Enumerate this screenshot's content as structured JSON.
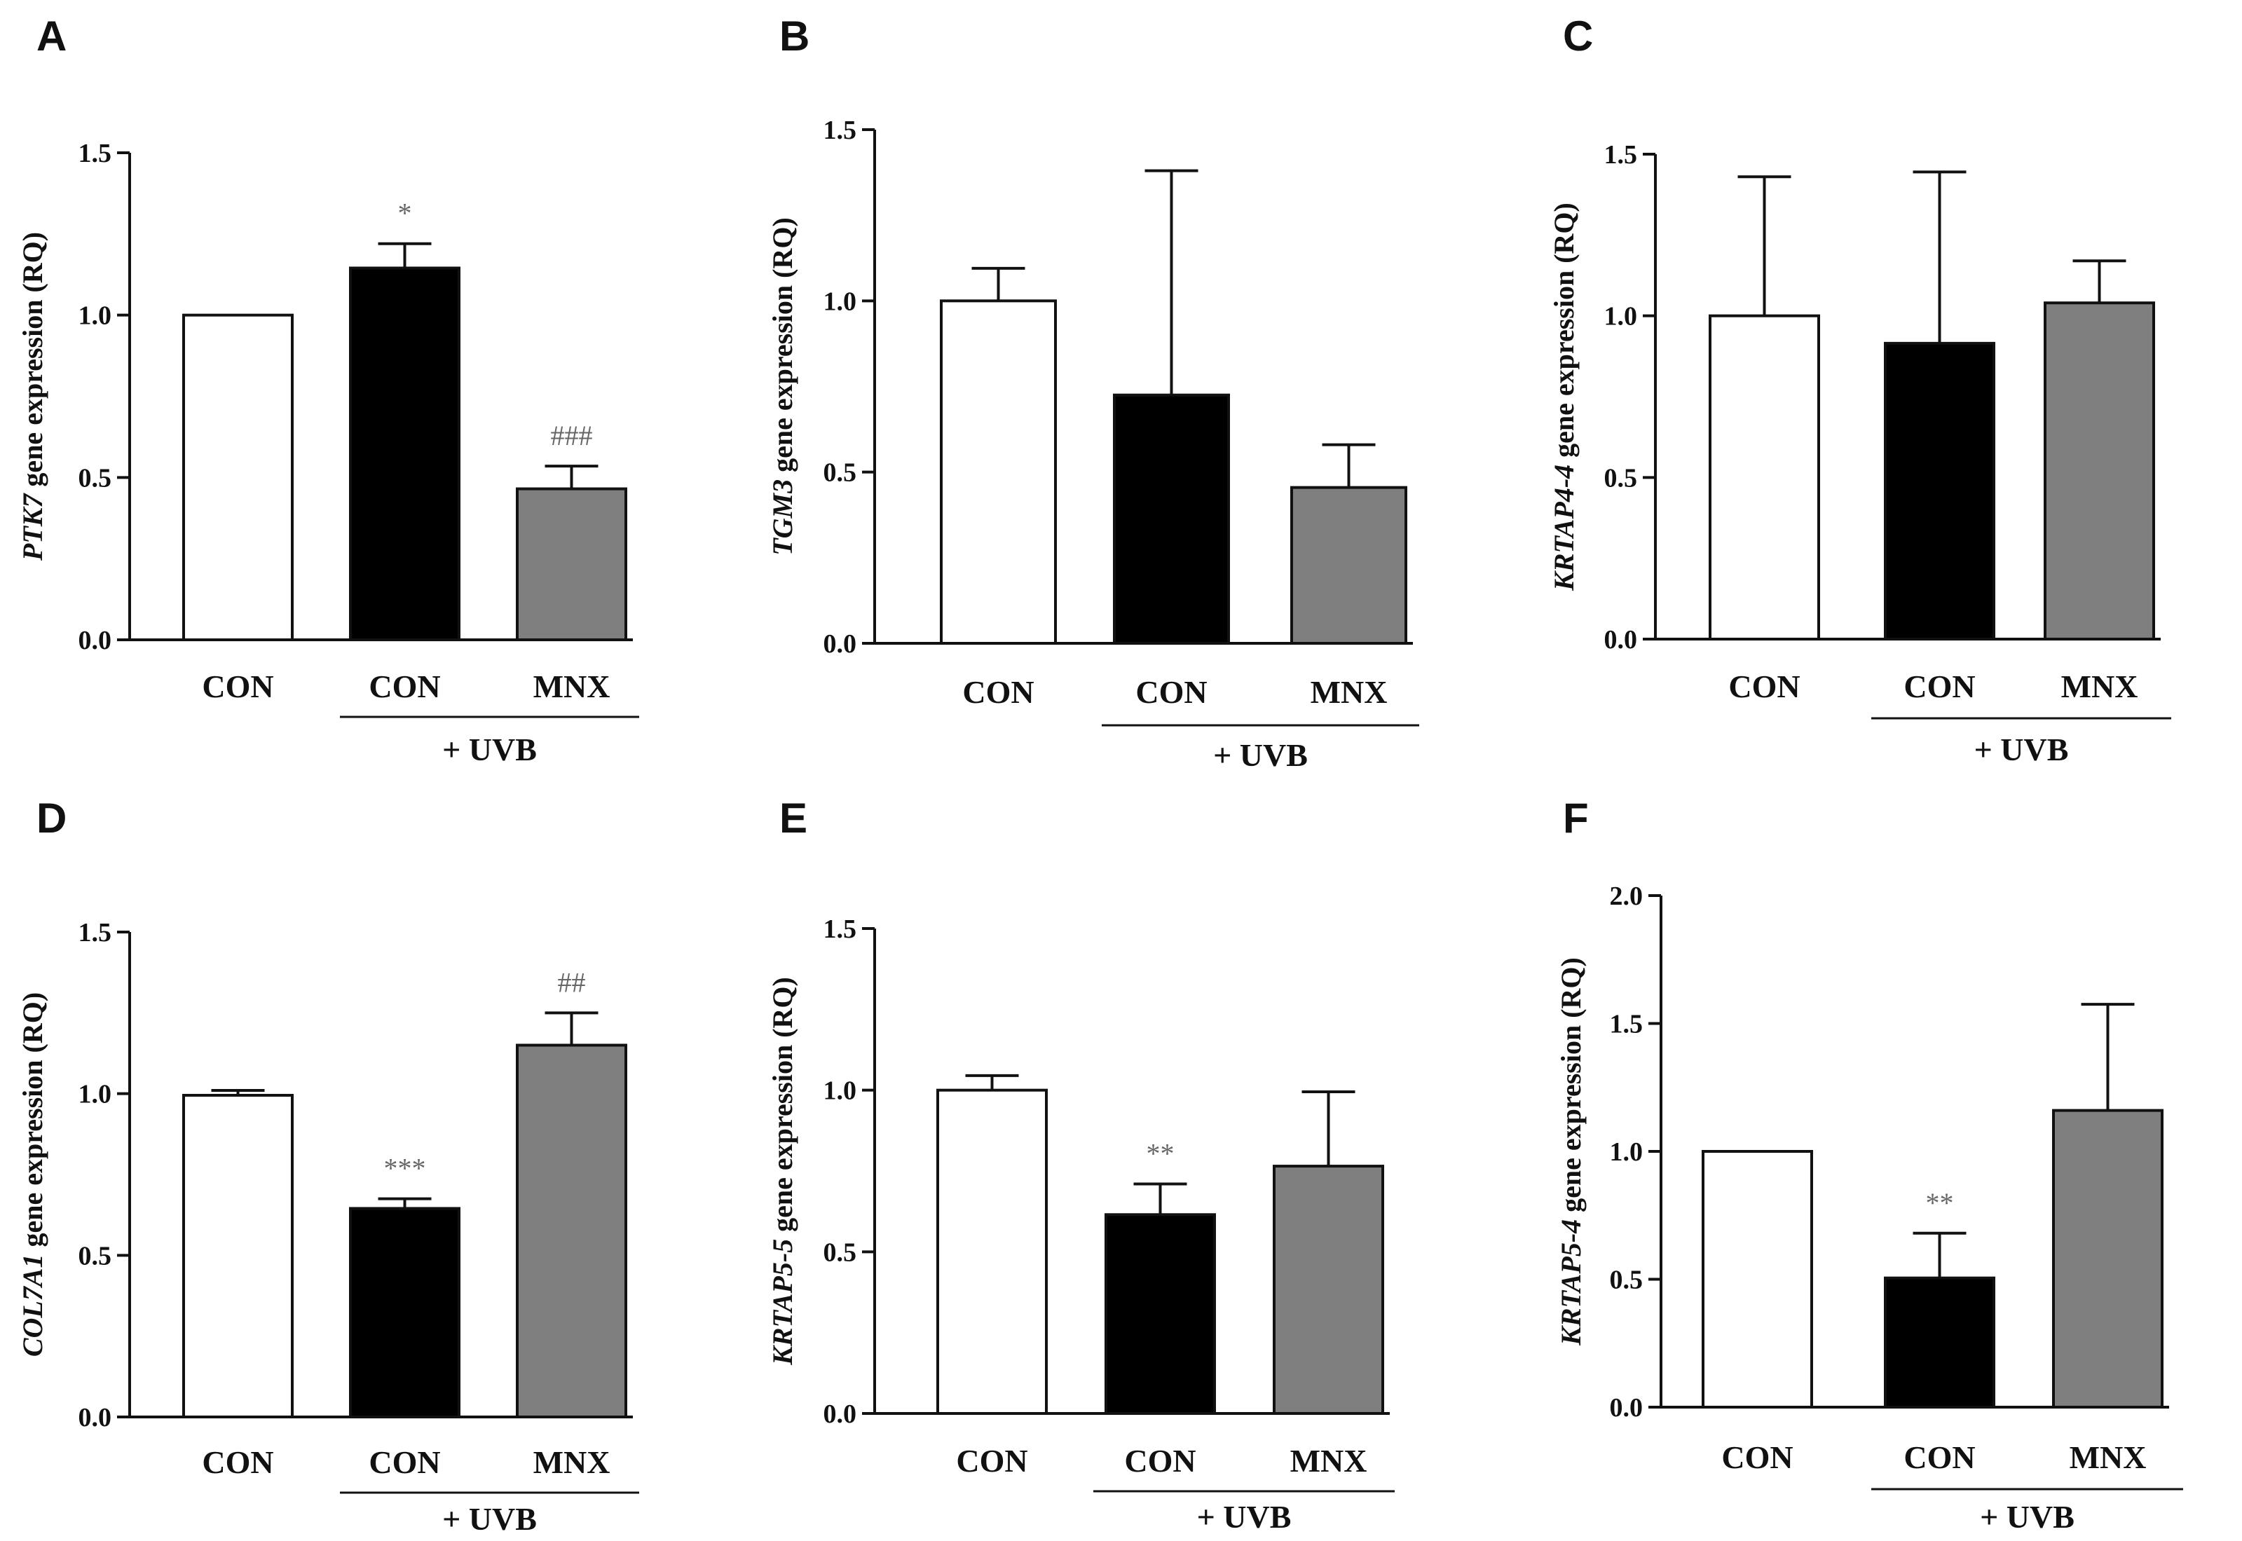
{
  "chart_data": [
    {
      "type": "bar",
      "panel": "A",
      "gene": "PTK7",
      "ylabel_suffix": " gene expression (RQ)",
      "ylim": [
        0,
        1.5
      ],
      "yticks": [
        "0.0",
        "0.5",
        "1.0",
        "1.5"
      ],
      "categories": [
        "CON",
        "CON",
        "MNX"
      ],
      "group_label": "+ UVB",
      "values": [
        1.0,
        1.145,
        0.465
      ],
      "errors": [
        0.0,
        0.075,
        0.07
      ],
      "significance": [
        "",
        "*",
        "###"
      ],
      "colors": [
        "#ffffff",
        "#000000",
        "#7f7f7f"
      ]
    },
    {
      "type": "bar",
      "panel": "B",
      "gene": "TGM3",
      "ylabel_suffix": " gene expression (RQ)",
      "ylim": [
        0,
        1.5
      ],
      "yticks": [
        "0.0",
        "0.5",
        "1.0",
        "1.5"
      ],
      "categories": [
        "CON",
        "CON",
        "MNX"
      ],
      "group_label": "+ UVB",
      "values": [
        1.0,
        0.725,
        0.455
      ],
      "errors": [
        0.095,
        0.655,
        0.125
      ],
      "significance": [
        "",
        "",
        ""
      ],
      "colors": [
        "#ffffff",
        "#000000",
        "#7f7f7f"
      ]
    },
    {
      "type": "bar",
      "panel": "C",
      "gene": "KRTAP4-4",
      "ylabel_suffix": " gene expression (RQ)",
      "ylim": [
        0,
        1.5
      ],
      "yticks": [
        "0.0",
        "0.5",
        "1.0",
        "1.5"
      ],
      "categories": [
        "CON",
        "CON",
        "MNX"
      ],
      "group_label": "+ UVB",
      "values": [
        1.0,
        0.915,
        1.04
      ],
      "errors": [
        0.43,
        0.53,
        0.13
      ],
      "significance": [
        "",
        "",
        ""
      ],
      "colors": [
        "#ffffff",
        "#000000",
        "#7f7f7f"
      ]
    },
    {
      "type": "bar",
      "panel": "D",
      "gene": "COL7A1",
      "ylabel_suffix": " gene expression (RQ)",
      "ylim": [
        0,
        1.5
      ],
      "yticks": [
        "0.0",
        "0.5",
        "1.0",
        "1.5"
      ],
      "categories": [
        "CON",
        "CON",
        "MNX"
      ],
      "group_label": "+ UVB",
      "values": [
        0.995,
        0.645,
        1.15
      ],
      "errors": [
        0.015,
        0.03,
        0.1
      ],
      "significance": [
        "",
        "***",
        "##"
      ],
      "colors": [
        "#ffffff",
        "#000000",
        "#7f7f7f"
      ]
    },
    {
      "type": "bar",
      "panel": "E",
      "gene": "KRTAP5-5",
      "ylabel_suffix": " gene expression (RQ)",
      "ylim": [
        0,
        1.5
      ],
      "yticks": [
        "0.0",
        "0.5",
        "1.0",
        "1.5"
      ],
      "categories": [
        "CON",
        "CON",
        "MNX"
      ],
      "group_label": "+ UVB",
      "values": [
        1.0,
        0.615,
        0.765
      ],
      "errors": [
        0.045,
        0.095,
        0.23
      ],
      "significance": [
        "",
        "**",
        ""
      ],
      "colors": [
        "#ffffff",
        "#000000",
        "#7f7f7f"
      ]
    },
    {
      "type": "bar",
      "panel": "F",
      "gene": "KRTAP5-4",
      "ylabel_suffix": " gene expression (RQ)",
      "ylim": [
        0,
        2.0
      ],
      "yticks": [
        "0.0",
        "0.5",
        "1.0",
        "1.5",
        "2.0"
      ],
      "categories": [
        "CON",
        "CON",
        "MNX"
      ],
      "group_label": "+ UVB",
      "values": [
        1.0,
        0.505,
        1.16
      ],
      "errors": [
        0.0,
        0.175,
        0.415
      ],
      "significance": [
        "",
        "**",
        ""
      ],
      "colors": [
        "#ffffff",
        "#000000",
        "#7f7f7f"
      ]
    }
  ]
}
